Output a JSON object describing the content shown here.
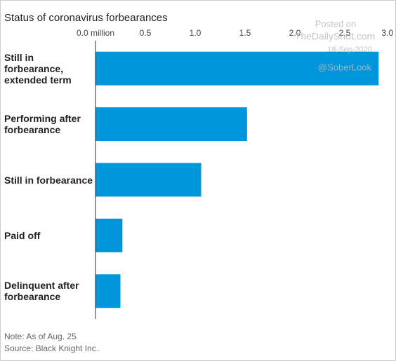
{
  "chart_data": {
    "type": "bar",
    "orientation": "horizontal",
    "title": "Status of coronavirus forbearances",
    "categories": [
      "Still in forbearance, extended term",
      "Performing after forbearance",
      "Still in forbearance",
      "Paid off",
      "Delinquent after forbearance"
    ],
    "values": [
      2.84,
      1.52,
      1.06,
      0.27,
      0.25
    ],
    "color": "#0096db",
    "xlim": [
      0,
      3
    ],
    "xticks": [
      {
        "value": 0,
        "label": "0.0 million"
      },
      0.5,
      {
        "value": 1,
        "label": "1.0"
      },
      1.5,
      {
        "value": 2,
        "label": "2.0"
      },
      2.5,
      {
        "value": 3,
        "label": "3.0"
      }
    ],
    "grid": false,
    "notes": [
      "Note: As of Aug. 25",
      "Source: Black Knight Inc."
    ],
    "watermark": [
      "Posted on",
      "TheDailyShot.com",
      "18-Sep-2020",
      "@SoberLook"
    ]
  }
}
